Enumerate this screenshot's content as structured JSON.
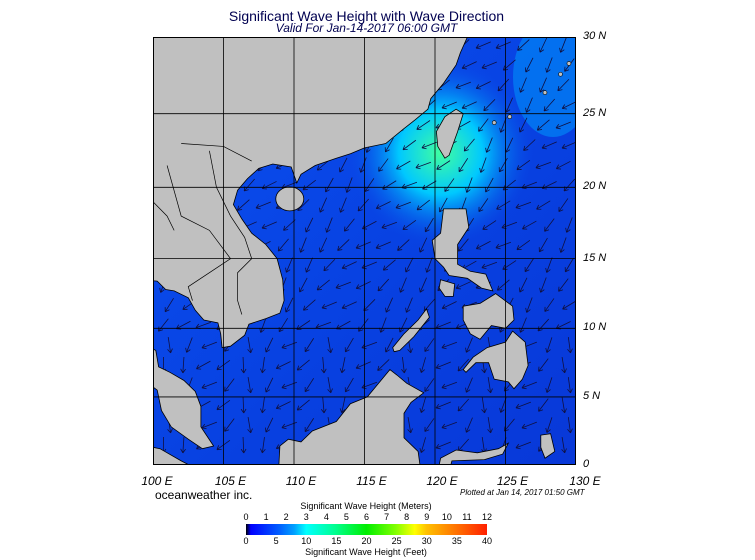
{
  "header": {
    "title": "Significant Wave Height with Wave Direction",
    "subtitle": "Valid For Jan-14-2017 06:00 GMT"
  },
  "map": {
    "projection": "mercator",
    "lon_range": [
      100,
      130
    ],
    "lat_range": [
      0,
      30
    ],
    "lon_labels": [
      "100 E",
      "105 E",
      "110 E",
      "115 E",
      "120 E",
      "125 E",
      "130 E"
    ],
    "lat_labels": [
      "30 N",
      "25 N",
      "20 N",
      "15 N",
      "10 N",
      "5 N",
      "0"
    ],
    "land_color": "#c0c0c0",
    "ocean_color": "#0848e8",
    "highlight_color": "#40ffa0",
    "arrow_direction": "mostly toward southwest"
  },
  "footer": {
    "credit": "oceanweather inc.",
    "plotted": "Plotted at Jan 14, 2017 01:50 GMT"
  },
  "legend": {
    "title_meters": "Significant Wave Height (Meters)",
    "title_feet": "Significant Wave Height (Feet)",
    "meters_ticks": [
      "0",
      "1",
      "2",
      "3",
      "4",
      "5",
      "6",
      "7",
      "8",
      "9",
      "10",
      "11",
      "12"
    ],
    "feet_ticks": [
      "0",
      "5",
      "10",
      "15",
      "20",
      "25",
      "30",
      "35",
      "40"
    ]
  }
}
